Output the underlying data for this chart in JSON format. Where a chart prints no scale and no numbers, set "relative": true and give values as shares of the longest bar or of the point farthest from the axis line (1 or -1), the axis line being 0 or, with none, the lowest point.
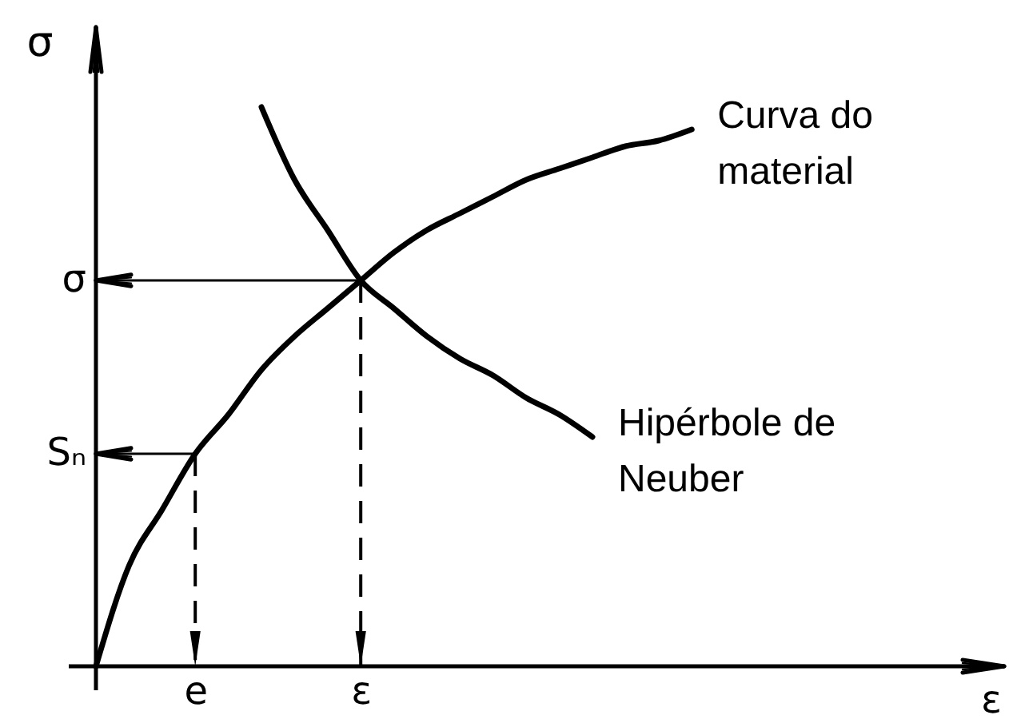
{
  "chart_data": {
    "type": "line",
    "xlabel": "ε",
    "ylabel": "σ",
    "relative": true,
    "categories": [
      null,
      null,
      null,
      "e",
      null,
      null,
      null,
      null,
      "ε",
      null,
      null,
      null,
      null,
      null,
      null,
      null,
      null,
      null,
      null,
      null,
      null,
      null,
      null,
      null,
      null,
      null,
      null,
      null
    ],
    "line_style": "solid",
    "series": [
      {
        "name": "Curva do material",
        "color": "#000000",
        "values": [
          0,
          0.18,
          0.28,
          0.38,
          0.45,
          0.53,
          0.59,
          0.64,
          0.69,
          0.74,
          0.78,
          0.81,
          0.84,
          0.87,
          0.89,
          0.91,
          0.93,
          0.94,
          0.96,
          null,
          null,
          null,
          null,
          null,
          null,
          null,
          null,
          null
        ]
      },
      {
        "name": "Hipérbole de Neuber",
        "color": "#000000",
        "values": [
          null,
          null,
          null,
          null,
          null,
          1.0,
          0.87,
          0.78,
          0.69,
          0.64,
          0.59,
          0.55,
          0.52,
          0.48,
          0.45,
          0.41,
          null,
          null,
          null,
          null,
          null,
          null,
          null,
          null,
          null,
          null,
          null,
          null
        ]
      }
    ],
    "annotations": [
      {
        "text": "Sₙ",
        "x": "e",
        "y": 0.38
      },
      {
        "text": "σ",
        "x": "ε",
        "y": 0.69
      }
    ]
  }
}
